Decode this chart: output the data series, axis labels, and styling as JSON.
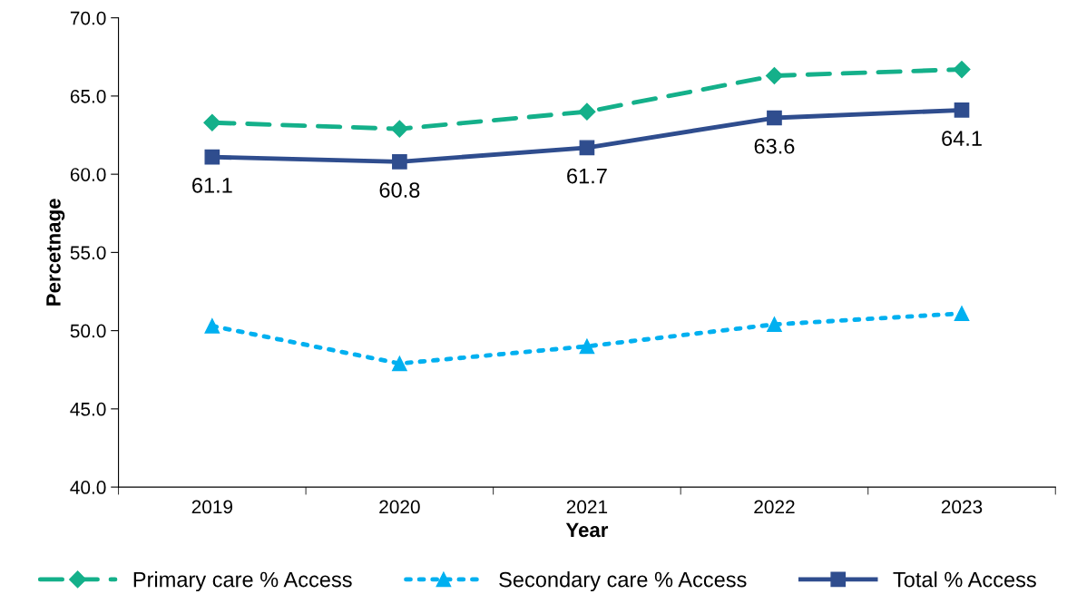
{
  "chart_data": {
    "type": "line",
    "xlabel": "Year",
    "ylabel": "Percetnage",
    "categories": [
      "2019",
      "2020",
      "2021",
      "2022",
      "2023"
    ],
    "series": [
      {
        "name": "Primary care % Access",
        "color": "#14b08a",
        "values": [
          63.3,
          62.9,
          64.0,
          66.3,
          66.7
        ],
        "marker": "diamond",
        "line_style": "dashed"
      },
      {
        "name": "Secondary care % Access",
        "color": "#00b0f0",
        "values": [
          50.3,
          47.9,
          49.0,
          50.4,
          51.1
        ],
        "marker": "triangle",
        "line_style": "dotted"
      },
      {
        "name": "Total % Access",
        "color": "#2f4d8e",
        "values": [
          61.1,
          60.8,
          61.7,
          63.6,
          64.1
        ],
        "marker": "square",
        "line_style": "solid",
        "data_labels": true
      }
    ],
    "ylim": [
      40,
      70
    ],
    "yticks": [
      {
        "value": 40,
        "label": "40.0"
      },
      {
        "value": 45,
        "label": "45.0"
      },
      {
        "value": 50,
        "label": "50.0"
      },
      {
        "value": 55,
        "label": "55.0"
      },
      {
        "value": 60,
        "label": "60.0"
      },
      {
        "value": 65,
        "label": "65.0"
      },
      {
        "value": 70,
        "label": "70.0"
      }
    ],
    "grid": false,
    "legend": "bottom"
  }
}
